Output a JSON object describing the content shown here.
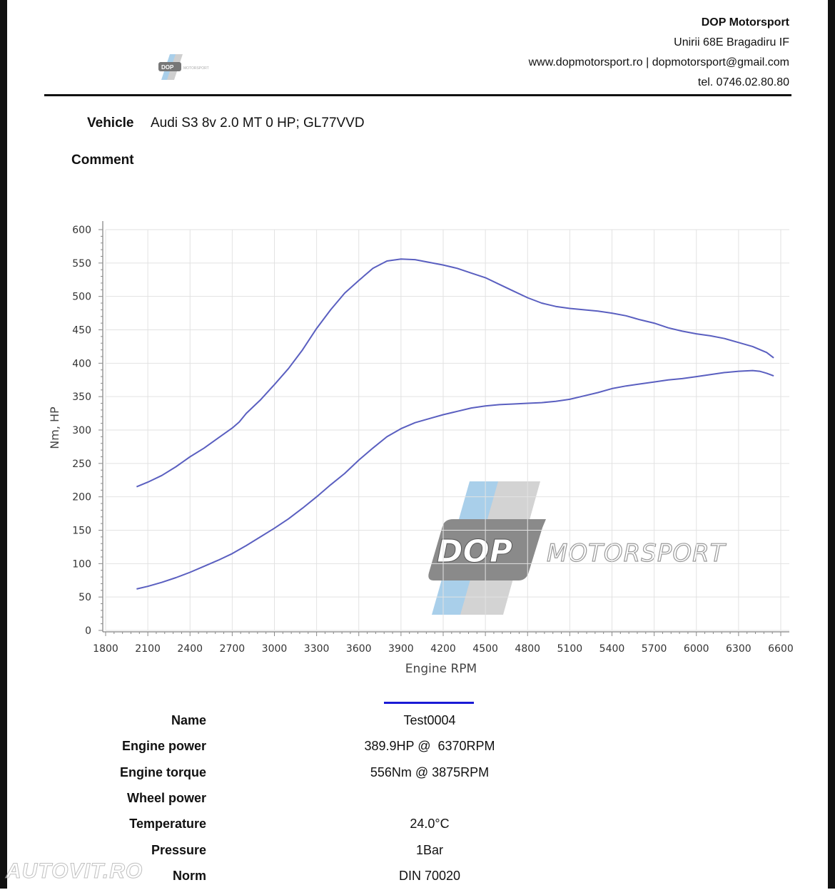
{
  "header": {
    "company": "DOP Motorsport",
    "address": "Unirii 68E Bragadiru IF",
    "web_email": "www.dopmotorsport.ro | dopmotorsport@gmail.com",
    "phone": "tel. 0746.02.80.80"
  },
  "logo": {
    "mark": "DOP",
    "subtitle": "MOTORSPORT"
  },
  "vehicle": {
    "label": "Vehicle",
    "value": "Audi S3 8v 2.0 MT 0 HP; GL77VVD"
  },
  "comment": {
    "label": "Comment"
  },
  "colors": {
    "curve": "#5a5fc0",
    "legend": "#1a1ad6",
    "watermark_blue": "#a9cfea",
    "watermark_grey": "#8a8a8a"
  },
  "chart_data": {
    "type": "line",
    "xlabel": "Engine RPM",
    "ylabel": "Nm, HP",
    "xlim": [
      1800,
      6600
    ],
    "ylim": [
      0,
      600
    ],
    "x_ticks": [
      1800,
      2100,
      2400,
      2700,
      3000,
      3300,
      3600,
      3900,
      4200,
      4500,
      4800,
      5100,
      5400,
      5700,
      6000,
      6300,
      6600
    ],
    "y_ticks": [
      0,
      50,
      100,
      150,
      200,
      250,
      300,
      350,
      400,
      450,
      500,
      550,
      600
    ],
    "grid": true,
    "series": [
      {
        "x": [
          2020,
          2100,
          2200,
          2300,
          2400,
          2500,
          2600,
          2700,
          2750,
          2800,
          2900,
          3000,
          3100,
          3200,
          3300,
          3400,
          3500,
          3600,
          3700,
          3800,
          3900,
          4000,
          4100,
          4200,
          4300,
          4400,
          4500,
          4600,
          4700,
          4800,
          4900,
          5000,
          5100,
          5200,
          5300,
          5400,
          5500,
          5600,
          5700,
          5800,
          5900,
          6000,
          6100,
          6200,
          6300,
          6400,
          6500,
          6550
        ],
        "y": [
          215,
          222,
          232,
          245,
          260,
          273,
          288,
          303,
          312,
          325,
          345,
          368,
          392,
          420,
          452,
          480,
          505,
          524,
          542,
          553,
          556,
          555,
          551,
          547,
          542,
          535,
          528,
          518,
          508,
          498,
          490,
          485,
          482,
          480,
          478,
          475,
          471,
          465,
          460,
          453,
          448,
          444,
          441,
          437,
          431,
          425,
          416,
          408
        ]
      },
      {
        "x": [
          2020,
          2100,
          2200,
          2300,
          2400,
          2500,
          2600,
          2700,
          2800,
          2900,
          3000,
          3100,
          3200,
          3300,
          3400,
          3500,
          3600,
          3700,
          3800,
          3900,
          4000,
          4100,
          4200,
          4300,
          4400,
          4500,
          4600,
          4700,
          4800,
          4900,
          5000,
          5100,
          5200,
          5300,
          5400,
          5500,
          5600,
          5700,
          5800,
          5900,
          6000,
          6100,
          6200,
          6300,
          6400,
          6450,
          6500,
          6550
        ],
        "y": [
          62,
          66,
          72,
          79,
          87,
          96,
          105,
          115,
          127,
          140,
          153,
          167,
          183,
          200,
          218,
          235,
          255,
          273,
          290,
          302,
          311,
          317,
          323,
          328,
          333,
          336,
          338,
          339,
          340,
          341,
          343,
          346,
          351,
          356,
          362,
          366,
          369,
          372,
          375,
          377,
          380,
          383,
          386,
          388,
          389,
          388,
          385,
          381
        ]
      }
    ]
  },
  "results": [
    {
      "key": "Name",
      "value": "Test0004"
    },
    {
      "key": "Engine power",
      "value": "389.9HP @  6370RPM"
    },
    {
      "key": "Engine torque",
      "value": "556Nm @ 3875RPM"
    },
    {
      "key": "Wheel power",
      "value": ""
    },
    {
      "key": "Temperature",
      "value": "24.0°C"
    },
    {
      "key": "Pressure",
      "value": "1Bar"
    },
    {
      "key": "Norm",
      "value": "DIN 70020"
    }
  ],
  "watermark": "AUTOVIT.RO"
}
